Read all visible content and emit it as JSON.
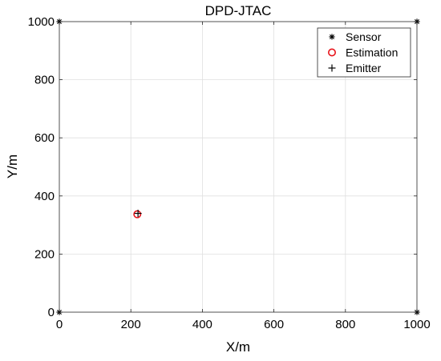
{
  "chart_data": {
    "type": "scatter",
    "title": "DPD-JTAC",
    "xlabel": "X/m",
    "ylabel": "Y/m",
    "xlim": [
      0,
      1000
    ],
    "ylim": [
      0,
      1000
    ],
    "xticks": [
      0,
      200,
      400,
      600,
      800,
      1000
    ],
    "yticks": [
      0,
      200,
      400,
      600,
      800,
      1000
    ],
    "grid": true,
    "legend_position": "top-right",
    "series": [
      {
        "name": "Sensor",
        "marker": "asterisk",
        "color": "#000000",
        "points": [
          {
            "x": 0,
            "y": 1000
          },
          {
            "x": 1000,
            "y": 1000
          },
          {
            "x": 0,
            "y": 0
          },
          {
            "x": 1000,
            "y": 0
          }
        ]
      },
      {
        "name": "Estimation",
        "marker": "circle",
        "color": "#e8141b",
        "points": [
          {
            "x": 218,
            "y": 337
          }
        ]
      },
      {
        "name": "Emitter",
        "marker": "plus",
        "color": "#000000",
        "points": [
          {
            "x": 220,
            "y": 340
          }
        ]
      }
    ]
  }
}
